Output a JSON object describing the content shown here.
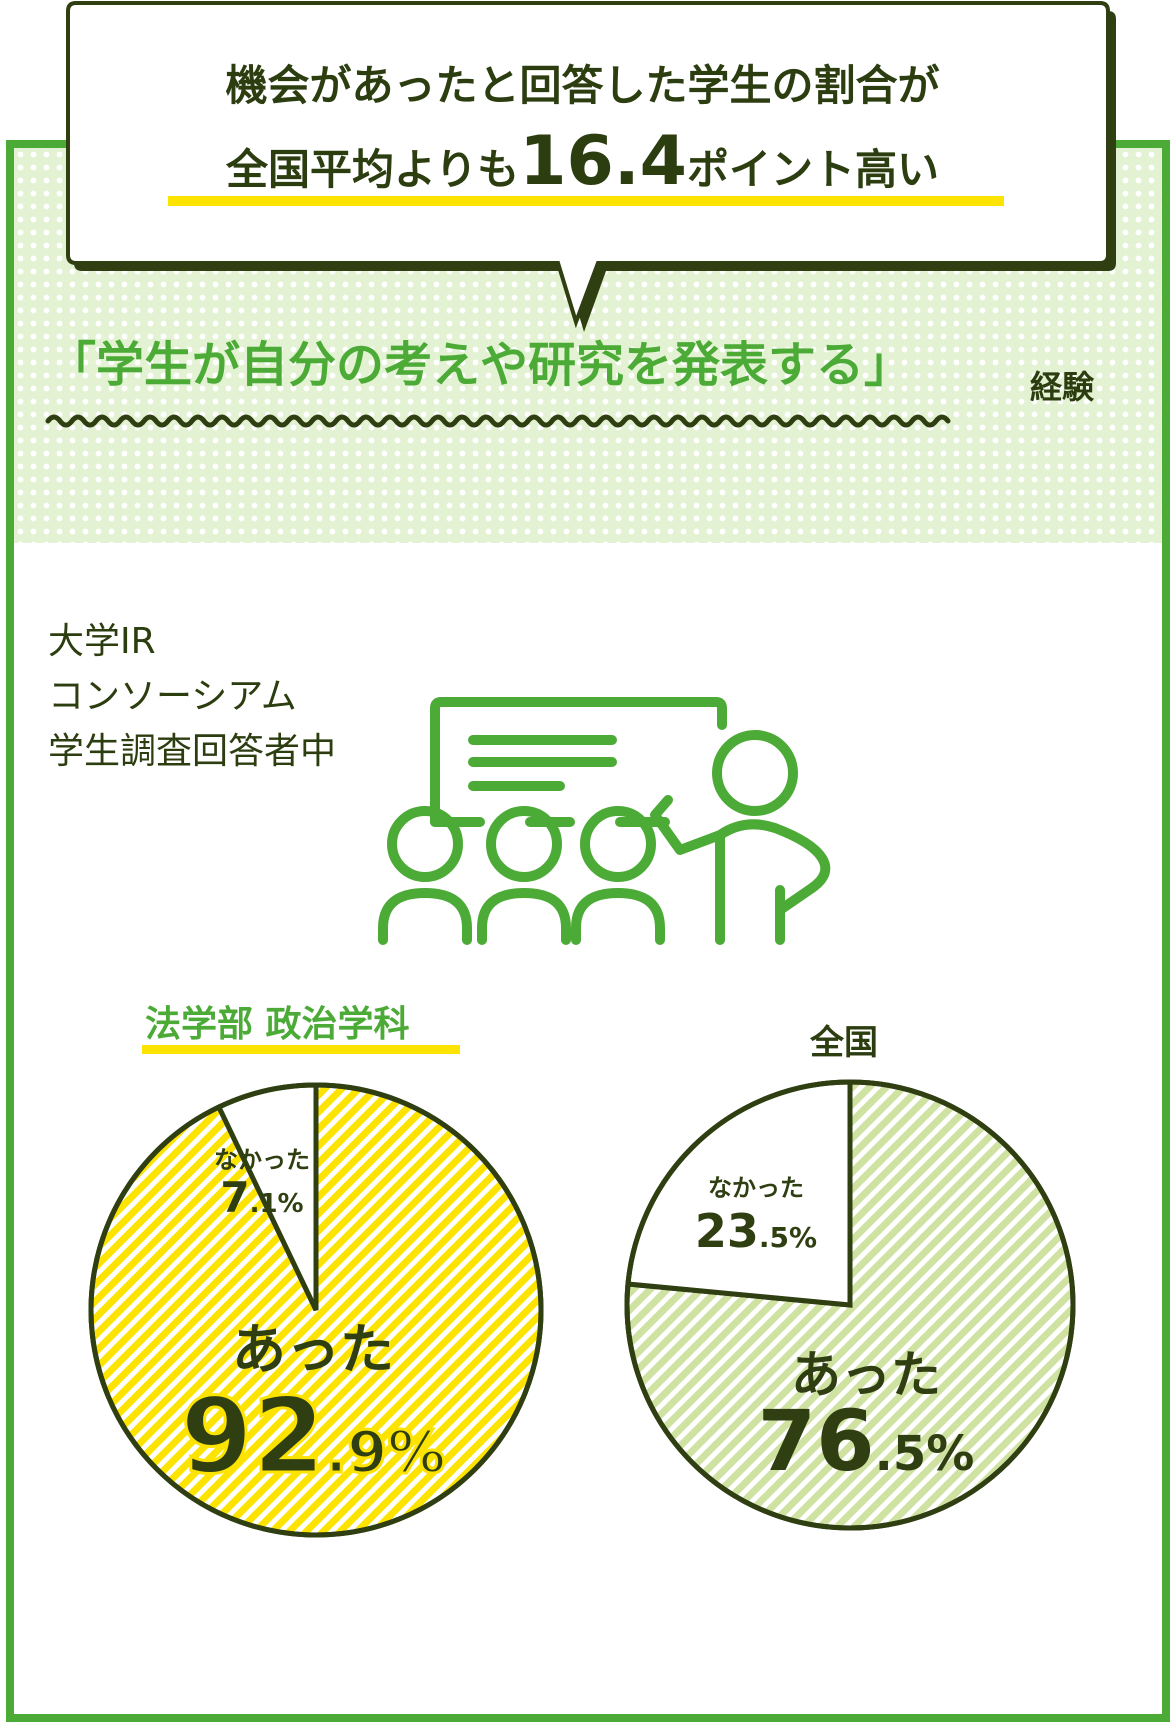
{
  "headline": {
    "line1": "機会があったと回答した学生の割合が",
    "line2_prefix": "全国平均よりも",
    "line2_number": "16.4",
    "line2_suffix": "ポイント高い"
  },
  "subtitle": {
    "main": "「学生が自分の考えや研究を発表する」",
    "suffix": "経験"
  },
  "survey_source": [
    "大学IR",
    "コンソーシアム",
    "学生調査回答者中"
  ],
  "icon": "presentation-icon",
  "colors": {
    "green": "#4caa36",
    "dark_green": "#2f3f12",
    "yellow": "#fde300",
    "light_green": "#cfe2a2",
    "dots_bg": "#e2f2d2"
  },
  "chart_data": [
    {
      "type": "pie",
      "title": "法学部 政治学科",
      "slices": [
        {
          "name": "なかった",
          "value": 7.1,
          "value_int": "7",
          "value_dec": ".1%"
        },
        {
          "name": "あった",
          "value": 92.9,
          "value_int": "92",
          "value_dec": ".9%"
        }
      ]
    },
    {
      "type": "pie",
      "title": "全国",
      "slices": [
        {
          "name": "なかった",
          "value": 23.5,
          "value_int": "23",
          "value_dec": ".5%"
        },
        {
          "name": "あった",
          "value": 76.5,
          "value_int": "76",
          "value_dec": ".5%"
        }
      ]
    }
  ]
}
